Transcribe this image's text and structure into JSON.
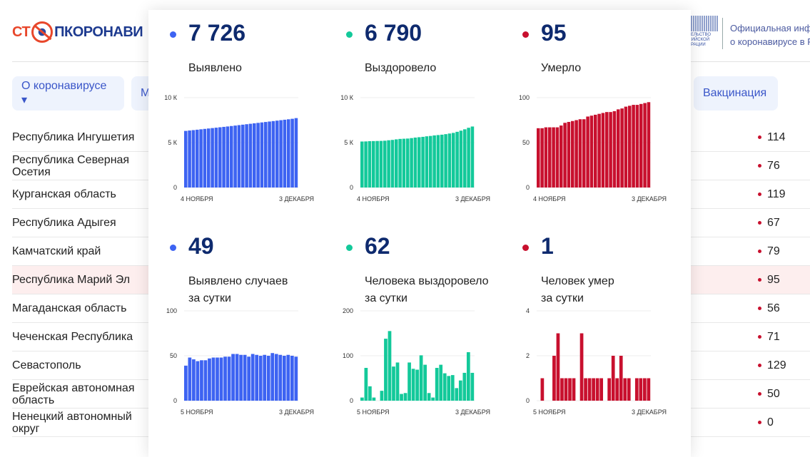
{
  "header": {
    "logo": "СТОПКОРОНАВИРУС",
    "gov_emblem": "ПРАВИТЕЛЬСТВО РОССИЙСКОЙ ФЕДЕРАЦИИ",
    "gov_text1": "Официальная информация",
    "gov_text2": "о коронавирусе в России"
  },
  "nav": [
    {
      "label": "О коронавирусе ▾"
    },
    {
      "label": "М"
    },
    {
      "label": "Вакцинация"
    }
  ],
  "regions": [
    {
      "name": "Республика Ингушетия",
      "value": "114"
    },
    {
      "name": "Республика Северная Осетия",
      "value": "76"
    },
    {
      "name": "Курганская область",
      "value": "119"
    },
    {
      "name": "Республика Адыгея",
      "value": "67"
    },
    {
      "name": "Камчатский край",
      "value": "79"
    },
    {
      "name": "Республика Марий Эл",
      "value": "95",
      "highlighted": true
    },
    {
      "name": "Магаданская область",
      "value": "56"
    },
    {
      "name": "Чеченская Республика",
      "value": "71"
    },
    {
      "name": "Севастополь",
      "value": "129"
    },
    {
      "name": "Еврейская автономная область",
      "value": "50"
    },
    {
      "name": "Ненецкий автономный округ",
      "value": "0"
    }
  ],
  "colors": {
    "cases": "#3d63f2",
    "recovered": "#13c99a",
    "deaths": "#c8102e",
    "title": "#0e2a6e"
  },
  "stats": [
    {
      "value": "7 726",
      "label1": "Выявлено",
      "label2": "",
      "color": "#3d63f2"
    },
    {
      "value": "6 790",
      "label1": "Выздоровело",
      "label2": "",
      "color": "#13c99a"
    },
    {
      "value": "95",
      "label1": "Умерло",
      "label2": "",
      "color": "#c8102e"
    },
    {
      "value": "49",
      "label1": "Выявлено случаев",
      "label2": "за сутки",
      "color": "#3d63f2"
    },
    {
      "value": "62",
      "label1": "Человека выздоровело",
      "label2": "за сутки",
      "color": "#13c99a"
    },
    {
      "value": "1",
      "label1": "Человек умер",
      "label2": "за сутки",
      "color": "#c8102e"
    }
  ],
  "chart_data": [
    {
      "type": "bar",
      "x_start": "4 НОЯБРЯ",
      "x_end": "3 ДЕКАБРЯ",
      "yticks": [
        "0",
        "5 К",
        "10 К"
      ],
      "ylim": [
        0,
        10000
      ],
      "color": "#3d63f2",
      "values": [
        6300,
        6345,
        6390,
        6435,
        6480,
        6525,
        6570,
        6615,
        6660,
        6705,
        6750,
        6795,
        6845,
        6895,
        6945,
        6995,
        7045,
        7095,
        7145,
        7195,
        7245,
        7295,
        7345,
        7395,
        7445,
        7495,
        7545,
        7595,
        7650,
        7726
      ]
    },
    {
      "type": "bar",
      "x_start": "4 НОЯБРЯ",
      "x_end": "3 ДЕКАБРЯ",
      "yticks": [
        "0",
        "5 К",
        "10 К"
      ],
      "ylim": [
        0,
        10000
      ],
      "color": "#13c99a",
      "values": [
        5120,
        5130,
        5160,
        5170,
        5180,
        5190,
        5210,
        5260,
        5300,
        5360,
        5410,
        5430,
        5450,
        5500,
        5560,
        5600,
        5640,
        5700,
        5740,
        5800,
        5840,
        5880,
        5940,
        6010,
        6080,
        6200,
        6330,
        6480,
        6650,
        6790
      ]
    },
    {
      "type": "bar",
      "x_start": "4 НОЯБРЯ",
      "x_end": "3 ДЕКАБРЯ",
      "yticks": [
        "0",
        "50",
        "100"
      ],
      "ylim": [
        0,
        100
      ],
      "color": "#c8102e",
      "values": [
        66,
        66,
        67,
        67,
        67,
        67,
        69,
        72,
        73,
        74,
        75,
        76,
        76,
        79,
        80,
        81,
        82,
        83,
        84,
        84,
        85,
        87,
        88,
        90,
        91,
        92,
        92,
        93,
        94,
        95
      ]
    },
    {
      "type": "bar",
      "x_start": "5 НОЯБРЯ",
      "x_end": "3 ДЕКАБРЯ",
      "yticks": [
        "0",
        "50",
        "100"
      ],
      "ylim": [
        0,
        100
      ],
      "color": "#3d63f2",
      "values": [
        39,
        48,
        46,
        44,
        45,
        45,
        47,
        48,
        48,
        48,
        49,
        49,
        52,
        52,
        51,
        51,
        49,
        52,
        51,
        50,
        51,
        50,
        53,
        52,
        51,
        50,
        51,
        50,
        49
      ]
    },
    {
      "type": "bar",
      "x_start": "5 НОЯБРЯ",
      "x_end": "3 ДЕКАБРЯ",
      "yticks": [
        "0",
        "100",
        "200"
      ],
      "ylim": [
        0,
        200
      ],
      "color": "#13c99a",
      "values": [
        7,
        73,
        32,
        7,
        0,
        22,
        138,
        155,
        76,
        85,
        15,
        17,
        85,
        71,
        69,
        101,
        80,
        17,
        7,
        73,
        80,
        61,
        55,
        57,
        28,
        45,
        62,
        108,
        62
      ]
    },
    {
      "type": "bar",
      "x_start": "5 НОЯБРЯ",
      "x_end": "3 ДЕКАБРЯ",
      "yticks": [
        "0",
        "2",
        "4"
      ],
      "ylim": [
        0,
        4
      ],
      "color": "#c8102e",
      "values": [
        0,
        1,
        0,
        0,
        2,
        3,
        1,
        1,
        1,
        1,
        0,
        3,
        1,
        1,
        1,
        1,
        1,
        0,
        1,
        2,
        1,
        2,
        1,
        1,
        0,
        1,
        1,
        1,
        1
      ]
    }
  ]
}
